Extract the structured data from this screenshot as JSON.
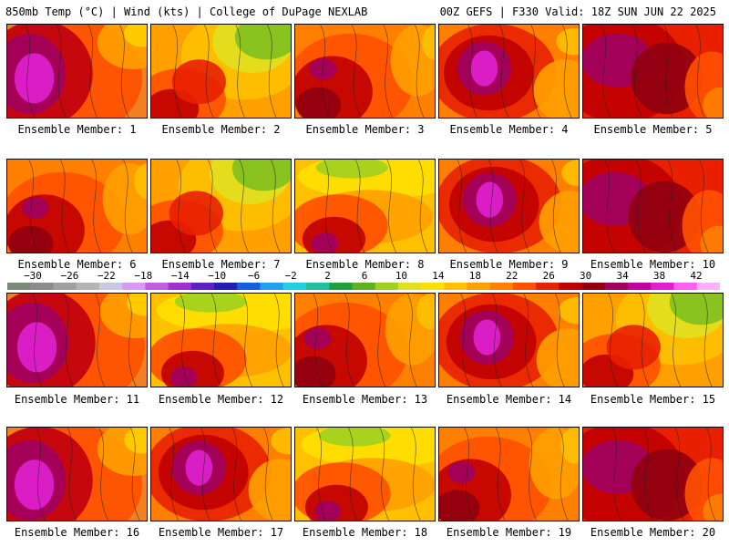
{
  "header": {
    "left_title": "850mb Temp (°C) | Wind (kts) | College of DuPage NEXLAB",
    "right_title": "00Z GEFS | F330 Valid: 18Z SUN JUN 22 2025"
  },
  "members": [
    {
      "label": "Ensemble Member: 1",
      "variant": 0
    },
    {
      "label": "Ensemble Member: 2",
      "variant": 1
    },
    {
      "label": "Ensemble Member: 3",
      "variant": 2
    },
    {
      "label": "Ensemble Member: 4",
      "variant": 3
    },
    {
      "label": "Ensemble Member: 5",
      "variant": 4
    },
    {
      "label": "Ensemble Member: 6",
      "variant": 2
    },
    {
      "label": "Ensemble Member: 7",
      "variant": 1
    },
    {
      "label": "Ensemble Member: 8",
      "variant": 5
    },
    {
      "label": "Ensemble Member: 9",
      "variant": 3
    },
    {
      "label": "Ensemble Member: 10",
      "variant": 4
    },
    {
      "label": "Ensemble Member: 11",
      "variant": 0
    },
    {
      "label": "Ensemble Member: 12",
      "variant": 5
    },
    {
      "label": "Ensemble Member: 13",
      "variant": 2
    },
    {
      "label": "Ensemble Member: 14",
      "variant": 3
    },
    {
      "label": "Ensemble Member: 15",
      "variant": 1
    },
    {
      "label": "Ensemble Member: 16",
      "variant": 0
    },
    {
      "label": "Ensemble Member: 17",
      "variant": 3
    },
    {
      "label": "Ensemble Member: 18",
      "variant": 5
    },
    {
      "label": "Ensemble Member: 19",
      "variant": 2
    },
    {
      "label": "Ensemble Member: 20",
      "variant": 4
    }
  ],
  "colorbar": {
    "labels": [
      "−30",
      "−26",
      "−22",
      "−18",
      "−14",
      "−10",
      "−6",
      "−2",
      "2",
      "6",
      "10",
      "14",
      "18",
      "22",
      "26",
      "30",
      "34",
      "38",
      "42"
    ],
    "colors": [
      "#7a8a7a",
      "#8c8c8c",
      "#a0a0a0",
      "#b4b4b4",
      "#c8c8e0",
      "#d69bf0",
      "#c060e0",
      "#a030d0",
      "#6020c0",
      "#2020b0",
      "#1060e0",
      "#20a0f0",
      "#20d0e0",
      "#20c0a0",
      "#20a040",
      "#60b020",
      "#a0d020",
      "#e0e020",
      "#ffe000",
      "#ffc000",
      "#ffa000",
      "#ff8000",
      "#ff5000",
      "#e82000",
      "#c00000",
      "#900010",
      "#a00060",
      "#c000a0",
      "#e020d0",
      "#ff60f0",
      "#ffb0ff"
    ],
    "levels": {
      "cool": "#f0a020",
      "warm": "#e84010",
      "hot": "#b00010",
      "very_hot": "#a00070",
      "extreme": "#d020c0",
      "mild": "#ffd000",
      "green": "#80c020"
    }
  }
}
